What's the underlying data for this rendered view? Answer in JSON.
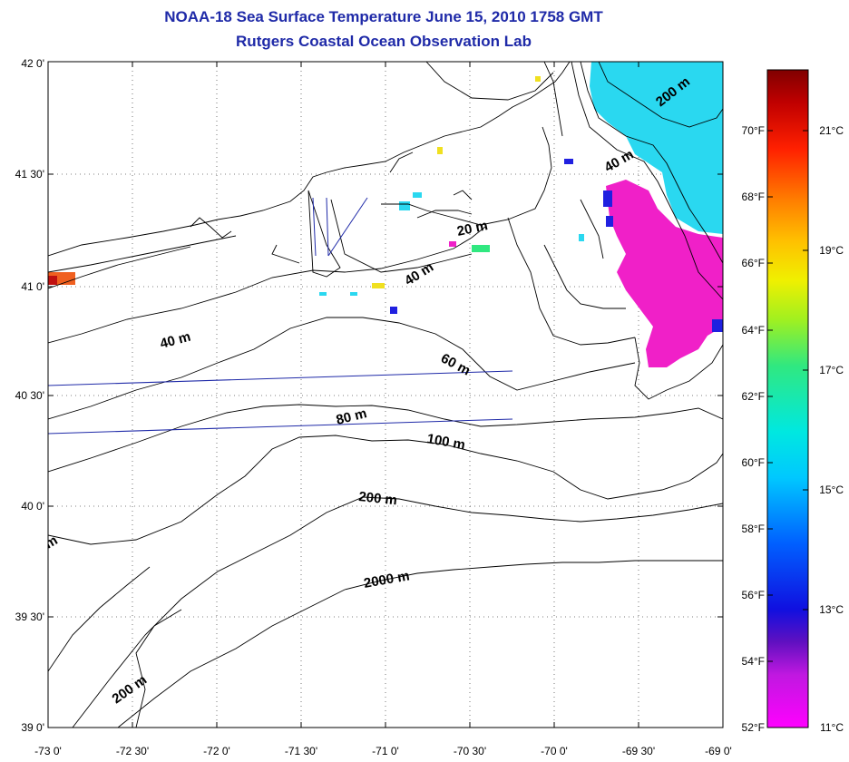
{
  "title": {
    "line1": "NOAA-18 Sea Surface Temperature June 15, 2010 1758 GMT",
    "line2": "Rutgers Coastal Ocean Observation Lab"
  },
  "map": {
    "lon_range": [
      -73,
      -69
    ],
    "lat_range": [
      39,
      42
    ],
    "lat_labels": [
      "42 0'",
      "41 30'",
      "41 0'",
      "40 30'",
      "40 0'",
      "39 30'",
      "39 0'"
    ],
    "lon_labels": [
      "-73 0'",
      "-72 30'",
      "-72 0'",
      "-71 30'",
      "-71 0'",
      "-70 30'",
      "-70 0'",
      "-69 30'",
      "-69 0'"
    ],
    "grid": true,
    "contour_labels": [
      "200 m",
      "40 m",
      "20 m",
      "40 m",
      "40 m",
      "60 m",
      "80 m",
      "100 m",
      "200 m",
      "2000 m",
      "200 m",
      "m"
    ]
  },
  "colorbar": {
    "fahrenheit_labels": [
      "70°F",
      "68°F",
      "66°F",
      "64°F",
      "62°F",
      "60°F",
      "58°F",
      "56°F",
      "54°F",
      "52°F"
    ],
    "celsius_labels": [
      "21°C",
      "19°C",
      "17°C",
      "15°C",
      "13°C",
      "11°C"
    ],
    "range_c": [
      11,
      22
    ]
  },
  "colors": {
    "title": "#1f2aa8",
    "ship_track": "#1f2aa8",
    "sst_cyan": "#2ad8f0",
    "sst_magenta": "#f020c8",
    "sst_blue": "#2020e0"
  }
}
